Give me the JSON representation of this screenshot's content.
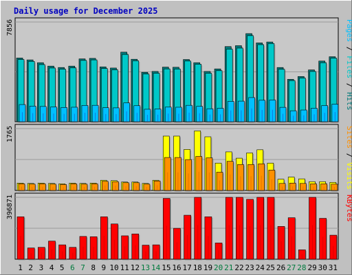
{
  "colors": {
    "background": "#c0c0c0",
    "title": "#0000c0",
    "panel_fill": "#c8c8c8",
    "grid": "#9a9a9a",
    "weekday_label": "#000000",
    "weekend_label": "#007a3d",
    "pages": "#00c0ff",
    "files": "#00c8c8",
    "hits": "#007a7a",
    "sites": "#ff9000",
    "visits": "#ffff00",
    "kbytes": "#ff0000",
    "pages_inner": "#1c3cc8",
    "sites_inner": "#d46000",
    "kbytes_inner": "#c00000"
  },
  "chart_data": {
    "type": "bar",
    "title": "Daily usage for December 2025",
    "categories": [
      "1",
      "2",
      "3",
      "4",
      "5",
      "6",
      "7",
      "8",
      "9",
      "10",
      "11",
      "12",
      "13",
      "14",
      "15",
      "16",
      "17",
      "18",
      "19",
      "20",
      "21",
      "22",
      "23",
      "24",
      "25",
      "26",
      "27",
      "28",
      "29",
      "30",
      "31"
    ],
    "weekend_days": [
      "6",
      "7",
      "13",
      "14",
      "20",
      "21",
      "27",
      "28"
    ],
    "panels": [
      {
        "name": "hits_files_pages",
        "ymax": 7856,
        "ytick_label": "7856",
        "legend": [
          {
            "text": "Pages",
            "color": "#00c0ff"
          },
          {
            "text": " / ",
            "color": "#000000"
          },
          {
            "text": "Files",
            "color": "#00c8c8"
          },
          {
            "text": " / ",
            "color": "#000000"
          },
          {
            "text": "Hits",
            "color": "#007a7a"
          }
        ],
        "series": [
          {
            "name": "Hits",
            "values": [
              5020,
              4870,
              4650,
              4380,
              4270,
              4380,
              4950,
              4990,
              4320,
              4230,
              5480,
              4920,
              3890,
              3960,
              4300,
              4290,
              4900,
              4650,
              3960,
              4160,
              5920,
              5990,
              6940,
              6210,
              6280,
              4270,
              3340,
              3560,
              4080,
              4780,
              5120
            ]
          },
          {
            "name": "Files",
            "values": [
              4900,
              4750,
              4500,
              4230,
              4140,
              4240,
              4830,
              4870,
              4190,
              4090,
              5300,
              4800,
              3760,
              3820,
              4160,
              4150,
              4780,
              4530,
              3820,
              4020,
              5720,
              5800,
              6780,
              6070,
              6160,
              4130,
              3240,
              3440,
              3960,
              4650,
              5010
            ]
          },
          {
            "name": "Pages",
            "values": [
              1350,
              1230,
              1200,
              1160,
              1120,
              1140,
              1280,
              1290,
              1100,
              1090,
              1480,
              1260,
              980,
              1000,
              1150,
              1140,
              1290,
              1210,
              1020,
              1060,
              1600,
              1620,
              1900,
              1690,
              1710,
              1130,
              860,
              920,
              1060,
              1270,
              1380
            ]
          }
        ]
      },
      {
        "name": "visits_sites",
        "ymax": 1765,
        "ytick_label": "1765",
        "legend": [
          {
            "text": "Sites",
            "color": "#ff9000"
          },
          {
            "text": " / ",
            "color": "#000000"
          },
          {
            "text": "Visits",
            "color": "#ffff00"
          }
        ],
        "series": [
          {
            "name": "Visits",
            "values": [
              210,
              200,
              210,
              200,
              190,
              210,
              200,
              210,
              290,
              280,
              240,
              240,
              200,
              290,
              1550,
              1550,
              1170,
              1700,
              1530,
              780,
              1100,
              920,
              1070,
              1160,
              780,
              320,
              380,
              330,
              250,
              250,
              230
            ]
          },
          {
            "name": "Sites",
            "values": [
              190,
              180,
              190,
              180,
              170,
              190,
              180,
              190,
              260,
              250,
              220,
              220,
              180,
              270,
              940,
              940,
              880,
              970,
              930,
              520,
              830,
              740,
              740,
              760,
              580,
              200,
              210,
              200,
              190,
              190,
              180
            ]
          }
        ]
      },
      {
        "name": "kbytes",
        "ymax": 396871,
        "ytick_label": "396871",
        "legend": [
          {
            "text": "KBytes",
            "color": "#ff0000"
          }
        ],
        "series": [
          {
            "name": "KBytes",
            "values": [
              272000,
              72000,
              76000,
              116000,
              92000,
              76000,
              146000,
              144000,
              272000,
              226000,
              150000,
              162000,
              90000,
              92000,
              390000,
              198000,
              282000,
              410000,
              272000,
              104000,
              426000,
              422000,
              384000,
              436000,
              496000,
              210000,
              266000,
              60000,
              470000,
              262000,
              154000
            ]
          }
        ]
      }
    ]
  }
}
